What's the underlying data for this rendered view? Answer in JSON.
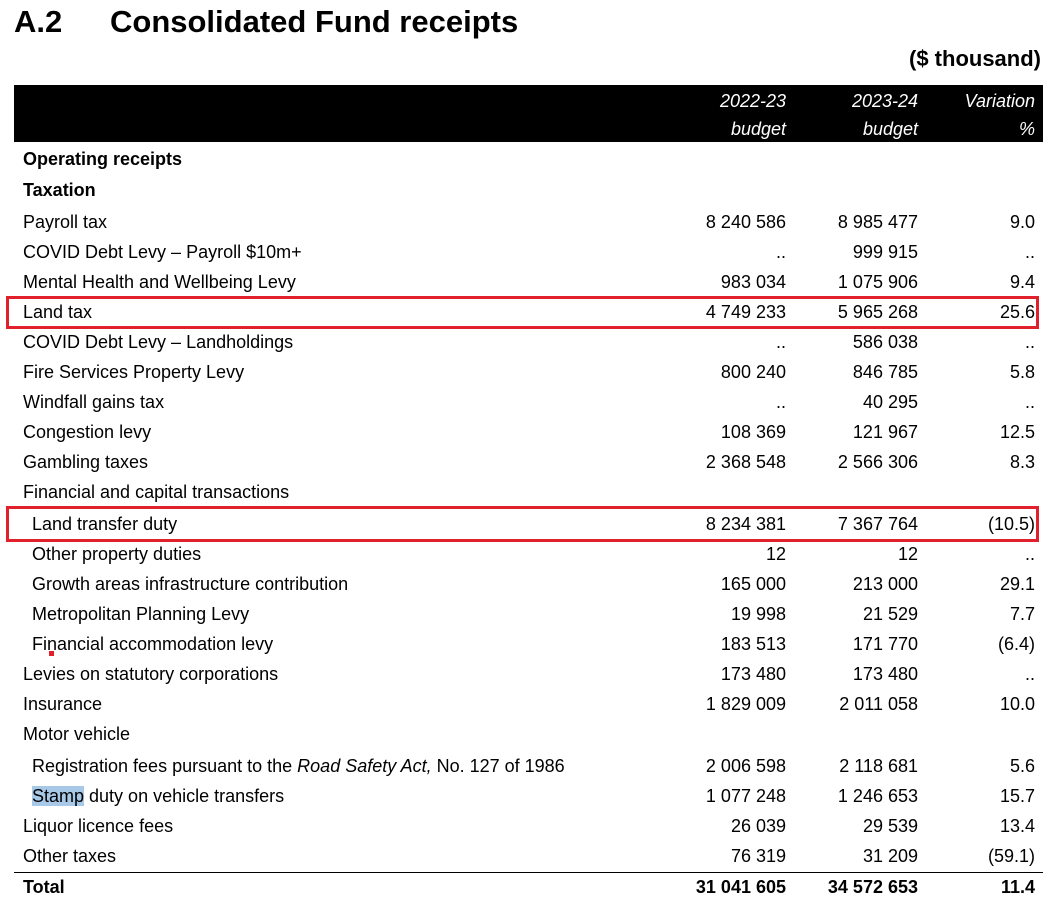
{
  "title": {
    "number": "A.2",
    "text": "Consolidated Fund receipts"
  },
  "units": "($ thousand)",
  "header": {
    "col1_line1": "2022-23",
    "col1_line2": "budget",
    "col2_line1": "2023-24",
    "col2_line2": "budget",
    "col3_line1": "Variation",
    "col3_line2": "%"
  },
  "rows": [
    {
      "label": "Operating receipts",
      "v1": "",
      "v2": "",
      "v3": ""
    },
    {
      "label": "Taxation",
      "v1": "",
      "v2": "",
      "v3": ""
    },
    {
      "label": "Payroll tax",
      "v1": "8 240 586",
      "v2": "8 985 477",
      "v3": "9.0"
    },
    {
      "label": "COVID Debt Levy – Payroll $10m+",
      "v1": "..",
      "v2": "999 915",
      "v3": ".."
    },
    {
      "label": "Mental Health and Wellbeing Levy",
      "v1": "983 034",
      "v2": "1 075 906",
      "v3": "9.4"
    },
    {
      "label": "Land tax",
      "v1": "4 749 233",
      "v2": "5 965 268",
      "v3": "25.6"
    },
    {
      "label": "COVID Debt Levy – Landholdings",
      "v1": "..",
      "v2": "586 038",
      "v3": ".."
    },
    {
      "label": "Fire Services Property Levy",
      "v1": "800 240",
      "v2": "846 785",
      "v3": "5.8"
    },
    {
      "label": "Windfall gains tax",
      "v1": "..",
      "v2": "40 295",
      "v3": ".."
    },
    {
      "label": "Congestion levy",
      "v1": "108 369",
      "v2": "121 967",
      "v3": "12.5"
    },
    {
      "label": "Gambling taxes",
      "v1": "2 368 548",
      "v2": "2 566 306",
      "v3": "8.3"
    },
    {
      "label": "Financial and capital transactions",
      "v1": "",
      "v2": "",
      "v3": ""
    },
    {
      "label": "Land transfer duty",
      "v1": "8 234 381",
      "v2": "7 367 764",
      "v3": "(10.5)"
    },
    {
      "label": "Other property duties",
      "v1": "12",
      "v2": "12",
      "v3": ".."
    },
    {
      "label": "Growth areas infrastructure contribution",
      "v1": "165 000",
      "v2": "213 000",
      "v3": "29.1"
    },
    {
      "label": "Metropolitan Planning Levy",
      "v1": "19 998",
      "v2": "21 529",
      "v3": "7.7"
    },
    {
      "label": "Financial accommodation levy",
      "v1": "183 513",
      "v2": "171 770",
      "v3": "(6.4)"
    },
    {
      "label": "Levies on statutory corporations",
      "v1": "173 480",
      "v2": "173 480",
      "v3": ".."
    },
    {
      "label": "Insurance",
      "v1": "1 829 009",
      "v2": "2 011 058",
      "v3": "10.0"
    },
    {
      "label": "Motor vehicle",
      "v1": "",
      "v2": "",
      "v3": ""
    },
    {
      "label_pre": "Registration fees pursuant to the ",
      "label_italic": "Road Safety Act,",
      "label_post": " No. 127 of 1986",
      "v1": "2 006 598",
      "v2": "2 118 681",
      "v3": "5.6"
    },
    {
      "label_sel": "Stamp",
      "label_post": " duty on vehicle transfers",
      "v1": "1 077 248",
      "v2": "1 246 653",
      "v3": "15.7"
    },
    {
      "label": "Liquor licence fees",
      "v1": "26 039",
      "v2": "29 539",
      "v3": "13.4"
    },
    {
      "label": "Other taxes",
      "v1": "76 319",
      "v2": "31 209",
      "v3": "(59.1)"
    },
    {
      "label": "Total",
      "v1": "31 041 605",
      "v2": "34 572 653",
      "v3": "11.4"
    }
  ],
  "colors": {
    "header_bg": "#000000",
    "highlight_border": "#e0202a",
    "selection": "#a7c8e6"
  }
}
